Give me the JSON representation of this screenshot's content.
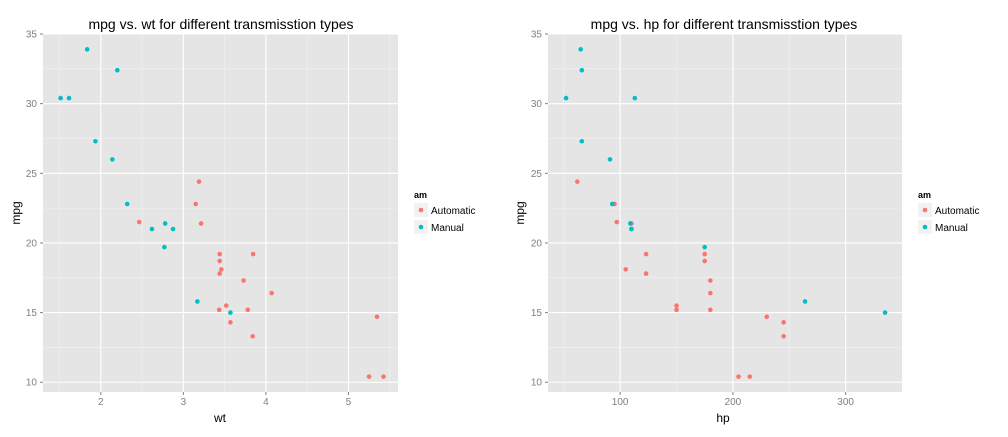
{
  "chart_data": [
    {
      "type": "scatter",
      "title": "mpg vs. wt for different transmisstion types",
      "xlabel": "wt",
      "ylabel": "mpg",
      "xlim": [
        1.3,
        5.6
      ],
      "ylim": [
        9.3,
        35.0
      ],
      "xticks": [
        2,
        3,
        4,
        5
      ],
      "yticks": [
        10,
        15,
        20,
        25,
        30,
        35
      ],
      "grid": true,
      "legend": {
        "title": "am",
        "placement": "right",
        "entries": [
          "Automatic",
          "Manual"
        ]
      },
      "series": [
        {
          "name": "Automatic",
          "color": "#F8766D",
          "points": [
            [
              3.215,
              21.4
            ],
            [
              3.44,
              18.7
            ],
            [
              3.46,
              18.1
            ],
            [
              3.57,
              14.3
            ],
            [
              3.19,
              24.4
            ],
            [
              3.15,
              22.8
            ],
            [
              3.44,
              19.2
            ],
            [
              3.44,
              17.8
            ],
            [
              4.07,
              16.4
            ],
            [
              3.73,
              17.3
            ],
            [
              3.78,
              15.2
            ],
            [
              5.25,
              10.4
            ],
            [
              5.424,
              10.4
            ],
            [
              5.345,
              14.7
            ],
            [
              2.465,
              21.5
            ],
            [
              3.52,
              15.5
            ],
            [
              3.435,
              15.2
            ],
            [
              3.84,
              13.3
            ],
            [
              3.845,
              19.2
            ]
          ]
        },
        {
          "name": "Manual",
          "color": "#00BFC4",
          "points": [
            [
              2.62,
              21.0
            ],
            [
              2.875,
              21.0
            ],
            [
              2.32,
              22.8
            ],
            [
              2.2,
              32.4
            ],
            [
              1.615,
              30.4
            ],
            [
              1.835,
              33.9
            ],
            [
              1.935,
              27.3
            ],
            [
              2.14,
              26.0
            ],
            [
              1.513,
              30.4
            ],
            [
              3.17,
              15.8
            ],
            [
              2.77,
              19.7
            ],
            [
              3.57,
              15.0
            ],
            [
              2.78,
              21.4
            ]
          ]
        }
      ]
    },
    {
      "type": "scatter",
      "title": "mpg vs. hp for different transmisstion types",
      "xlabel": "hp",
      "ylabel": "mpg",
      "xlim": [
        36,
        350
      ],
      "ylim": [
        9.3,
        35.0
      ],
      "xticks": [
        100,
        200,
        300
      ],
      "yticks": [
        10,
        15,
        20,
        25,
        30,
        35
      ],
      "grid": true,
      "legend": {
        "title": "am",
        "placement": "right",
        "entries": [
          "Automatic",
          "Manual"
        ]
      },
      "series": [
        {
          "name": "Automatic",
          "color": "#F8766D",
          "points": [
            [
              110,
              21.4
            ],
            [
              175,
              18.7
            ],
            [
              105,
              18.1
            ],
            [
              245,
              14.3
            ],
            [
              62,
              24.4
            ],
            [
              95,
              22.8
            ],
            [
              123,
              19.2
            ],
            [
              123,
              17.8
            ],
            [
              180,
              16.4
            ],
            [
              180,
              17.3
            ],
            [
              180,
              15.2
            ],
            [
              205,
              10.4
            ],
            [
              215,
              10.4
            ],
            [
              230,
              14.7
            ],
            [
              97,
              21.5
            ],
            [
              150,
              15.5
            ],
            [
              150,
              15.2
            ],
            [
              245,
              13.3
            ],
            [
              175,
              19.2
            ]
          ]
        },
        {
          "name": "Manual",
          "color": "#00BFC4",
          "points": [
            [
              110,
              21.0
            ],
            [
              110,
              21.0
            ],
            [
              93,
              22.8
            ],
            [
              66,
              32.4
            ],
            [
              52,
              30.4
            ],
            [
              65,
              33.9
            ],
            [
              66,
              27.3
            ],
            [
              91,
              26.0
            ],
            [
              113,
              30.4
            ],
            [
              264,
              15.8
            ],
            [
              175,
              19.7
            ],
            [
              335,
              15.0
            ],
            [
              109,
              21.4
            ]
          ]
        }
      ]
    }
  ]
}
